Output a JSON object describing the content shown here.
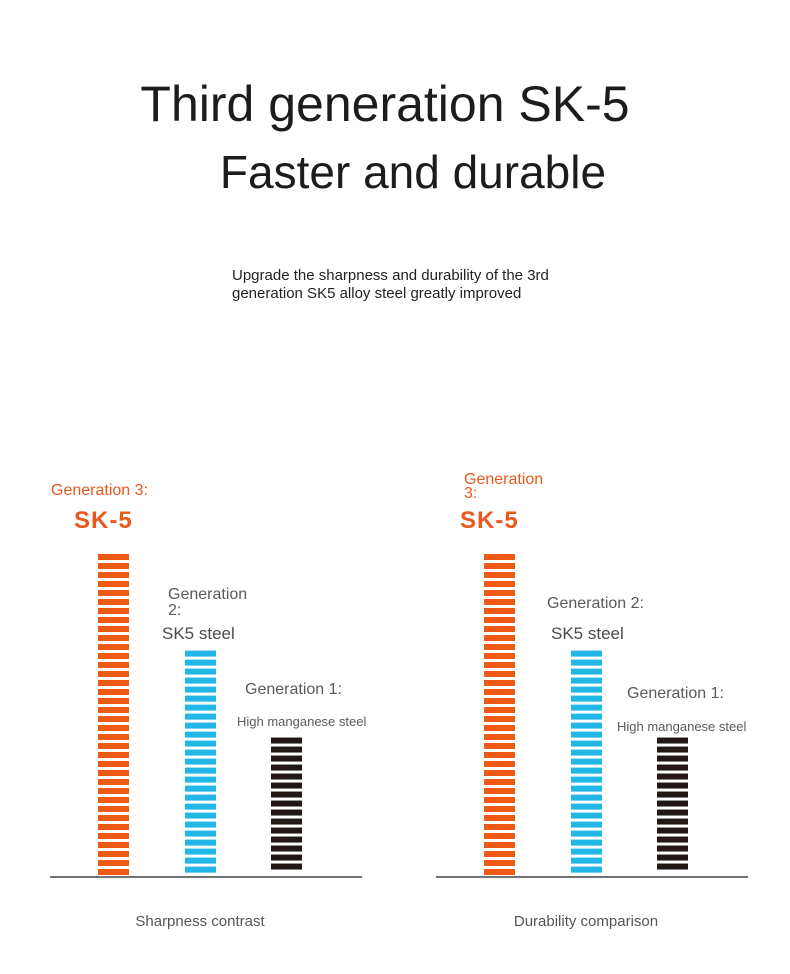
{
  "header": {
    "title_line1": "Third generation SK-5",
    "title_line2": "Faster and durable",
    "subtitle_line1": "Upgrade the sharpness and durability of the 3rd",
    "subtitle_line2": "generation SK5 alloy steel greatly improved"
  },
  "colors": {
    "generation3": "#ee5a16",
    "generation2": "#20b6e6",
    "generation1": "#231815",
    "axis": "#444444"
  },
  "chart_data": [
    {
      "type": "bar",
      "title": "Sharpness contrast",
      "categories": [
        "Generation 3:",
        "Generation 2:",
        "Generation 1:"
      ],
      "category_names": [
        "SK-5",
        "SK5 steel",
        "High manganese steel"
      ],
      "values": [
        10,
        7,
        4.3
      ],
      "ylim": [
        0,
        10
      ],
      "grid": false,
      "legend": "none"
    },
    {
      "type": "bar",
      "title": "Durability comparison",
      "categories": [
        "Generation 3:",
        "Generation 2:",
        "Generation 1:"
      ],
      "category_names": [
        "SK-5",
        "SK5 steel",
        "High manganese steel"
      ],
      "values": [
        10,
        7,
        4.3
      ],
      "ylim": [
        0,
        10
      ],
      "grid": false,
      "legend": "none"
    }
  ]
}
